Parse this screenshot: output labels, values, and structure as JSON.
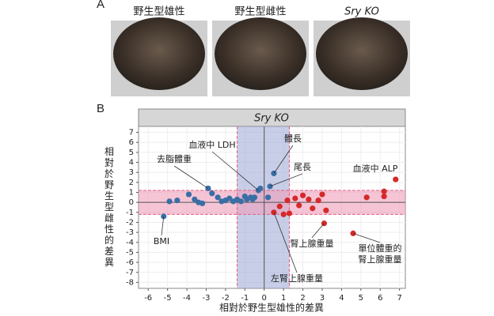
{
  "panel_labels": [
    "A",
    "B"
  ],
  "photo_labels": [
    "野生型雄性",
    "野生型雌性",
    "Sry KO"
  ],
  "chart_data": {
    "type": "scatter",
    "title": "Sry KO",
    "xlabel": "相對於野生型雄性的差異",
    "ylabel": "相對於野生型雌性的差異",
    "xlim": [
      -6.5,
      7.3
    ],
    "ylim": [
      -8.6,
      7.6
    ],
    "xticks": [
      -6,
      -5,
      -4,
      -3,
      -2,
      -1,
      0,
      1,
      2,
      3,
      4,
      5,
      6,
      7
    ],
    "yticks": [
      7,
      6,
      5,
      4,
      3,
      2,
      1,
      0,
      -1,
      -2,
      -3,
      -4,
      -5,
      -6,
      -7,
      -8
    ],
    "x_band": [
      -1.4,
      1.3
    ],
    "y_band": [
      -1.2,
      1.2
    ],
    "grid": true,
    "series": [
      {
        "color": "#3a6ea5",
        "x": [
          -5.2,
          -4.9,
          -4.5,
          -3.9,
          -3.6,
          -3.4,
          -3.2,
          -2.9,
          -2.7,
          -2.4,
          -2.2,
          -2.0,
          -1.8,
          -1.6,
          -1.4,
          -1.2,
          -1.0,
          -0.9,
          -0.7,
          -0.6,
          -0.5,
          -0.3,
          -0.2,
          0.2,
          0.3,
          0.5
        ],
        "values": [
          -1.4,
          0.1,
          0.2,
          0.8,
          0.3,
          0.0,
          -0.1,
          1.4,
          0.9,
          0.5,
          0.1,
          0.2,
          0.4,
          0.1,
          0.3,
          0.1,
          0.6,
          0.3,
          0.5,
          0.3,
          0.5,
          1.2,
          1.4,
          0.5,
          1.6,
          2.9
        ]
      },
      {
        "color": "#d42a2a",
        "x": [
          0.5,
          0.8,
          1.0,
          1.2,
          1.3,
          1.6,
          1.8,
          2.0,
          2.3,
          2.5,
          2.8,
          3.0,
          3.1,
          3.2,
          4.6,
          5.3,
          6.2,
          6.2,
          6.8
        ],
        "values": [
          -1.0,
          -0.4,
          -1.2,
          0.2,
          -1.1,
          0.4,
          -0.3,
          0.7,
          0.3,
          -0.6,
          0.2,
          0.8,
          -2.1,
          -0.8,
          -3.1,
          0.5,
          0.6,
          1.1,
          2.3
        ]
      }
    ],
    "annotations": [
      "血液中 LDH",
      "去脂體重",
      "體長",
      "尾長",
      "血液中 ALP",
      "BMI",
      "腎上腺重量",
      "單位體重的",
      "腎上腺重量",
      "左腎上腺重量"
    ]
  }
}
